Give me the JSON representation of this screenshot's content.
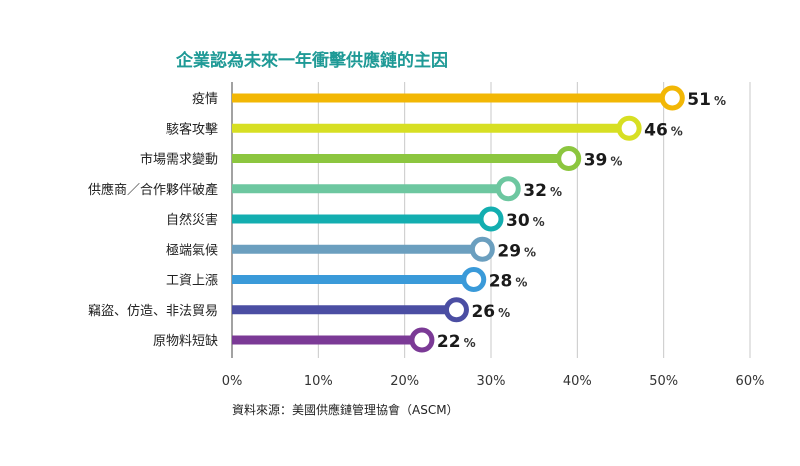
{
  "chart_data": {
    "type": "bar",
    "orientation": "horizontal",
    "title": "企業認為未來一年衝擊供應鏈的主因",
    "categories": [
      "疫情",
      "駭客攻擊",
      "市場需求變動",
      "供應商／合作夥伴破產",
      "自然災害",
      "極端氣候",
      "工資上漲",
      "竊盜、仿造、非法貿易",
      "原物料短缺"
    ],
    "values": [
      51,
      46,
      39,
      32,
      30,
      29,
      28,
      26,
      22
    ],
    "value_unit": "%",
    "colors": [
      "#f2b705",
      "#d7df23",
      "#8cc63f",
      "#6dc7a0",
      "#13aeb0",
      "#6b9fbf",
      "#3a9ad9",
      "#4b4ea3",
      "#7b3a96"
    ],
    "xlim": [
      0,
      60
    ],
    "xticks": [
      "0%",
      "10%",
      "20%",
      "30%",
      "40%",
      "50%",
      "60%"
    ],
    "xlabel": "",
    "ylabel": "",
    "grid": true,
    "legend": "none",
    "source": "資料來源：美國供應鏈管理協會（ASCM）"
  }
}
